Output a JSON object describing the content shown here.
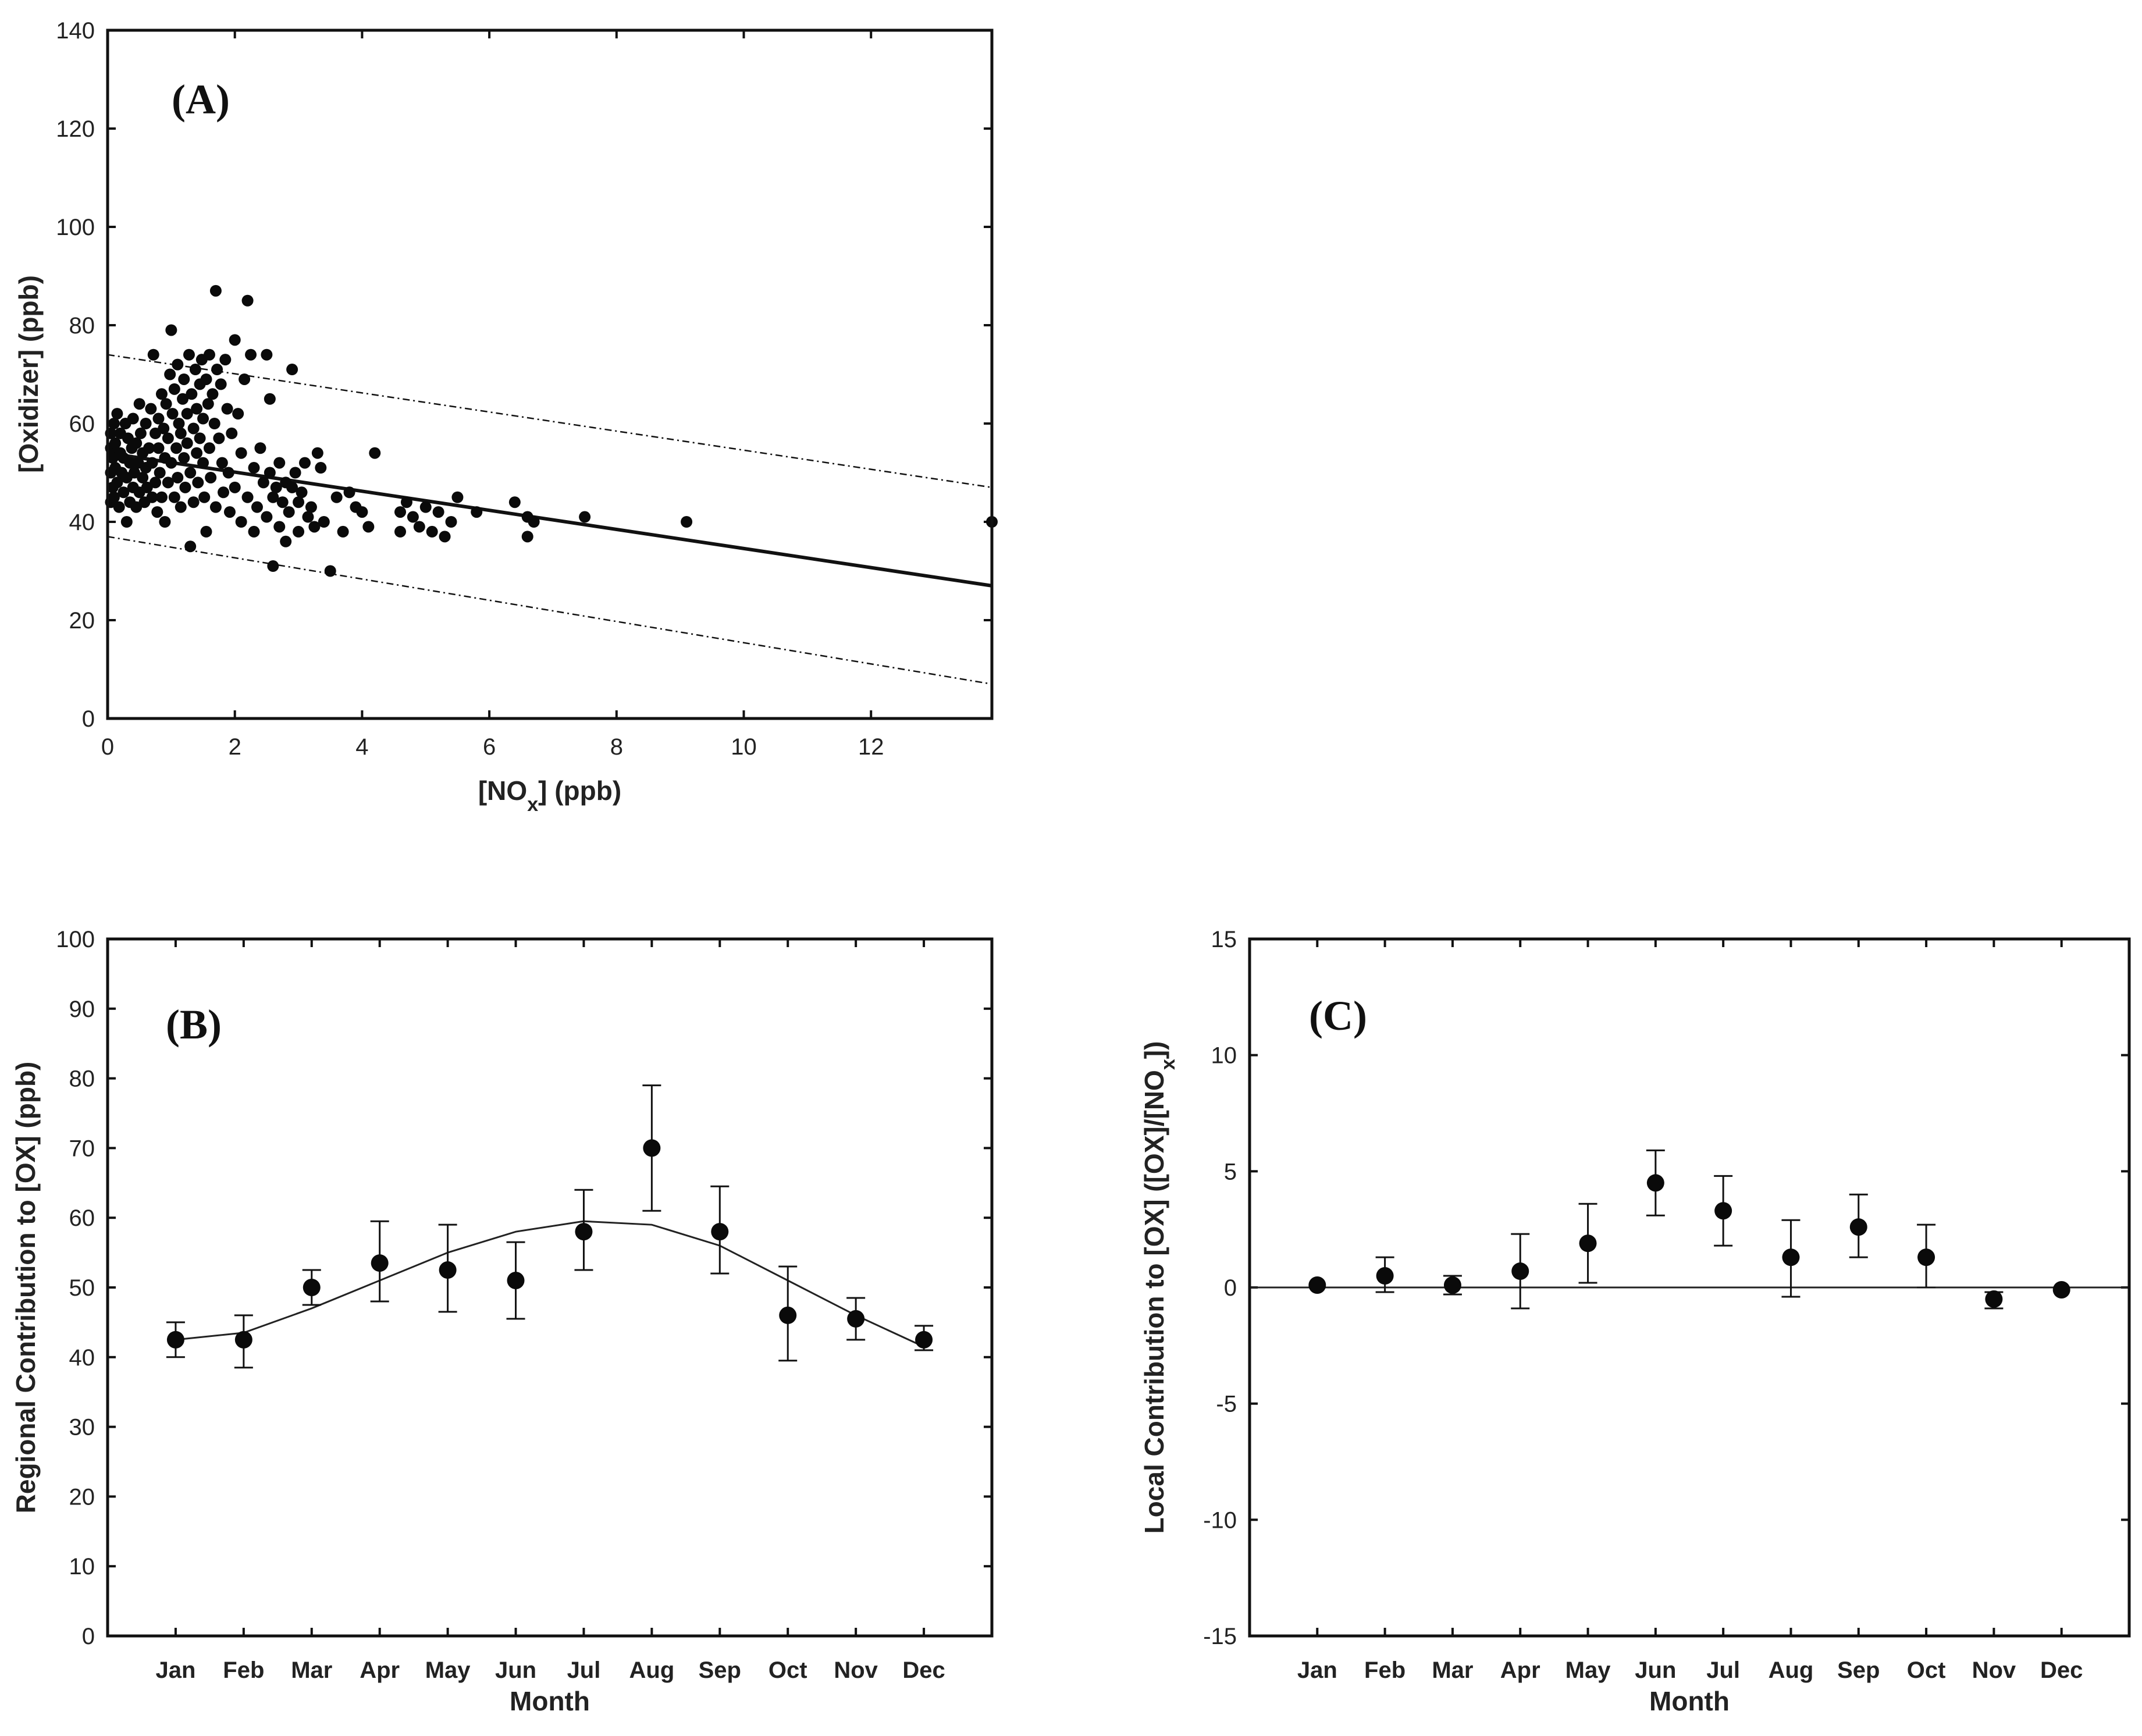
{
  "chart_data": [
    {
      "type": "scatter",
      "panel_label": "(A)",
      "xlabel_main": "[NO",
      "xlabel_sub": "x",
      "xlabel_tail": "] (ppb)",
      "ylabel": "[Oxidizer] (ppb)",
      "xlim": [
        0,
        13.9
      ],
      "ylim": [
        0,
        140
      ],
      "xticks": [
        0,
        2,
        4,
        6,
        8,
        10,
        12
      ],
      "yticks": [
        0,
        20,
        40,
        60,
        80,
        100,
        120,
        140
      ],
      "fit_line": {
        "x": [
          0,
          13.9
        ],
        "y": [
          54,
          27
        ]
      },
      "upper_band": {
        "x": [
          0,
          13.9
        ],
        "y": [
          74,
          47
        ]
      },
      "lower_band": {
        "x": [
          0,
          13.9
        ],
        "y": [
          37,
          7
        ]
      },
      "points": [
        [
          0.05,
          44
        ],
        [
          0.05,
          50
        ],
        [
          0.05,
          55
        ],
        [
          0.05,
          58
        ],
        [
          0.08,
          47
        ],
        [
          0.08,
          53
        ],
        [
          0.1,
          60
        ],
        [
          0.1,
          45
        ],
        [
          0.12,
          51
        ],
        [
          0.12,
          56
        ],
        [
          0.15,
          48
        ],
        [
          0.15,
          62
        ],
        [
          0.18,
          43
        ],
        [
          0.2,
          54
        ],
        [
          0.2,
          58
        ],
        [
          0.22,
          50
        ],
        [
          0.25,
          46
        ],
        [
          0.25,
          53
        ],
        [
          0.28,
          60
        ],
        [
          0.3,
          40
        ],
        [
          0.3,
          49
        ],
        [
          0.32,
          57
        ],
        [
          0.35,
          44
        ],
        [
          0.35,
          52
        ],
        [
          0.38,
          55
        ],
        [
          0.4,
          47
        ],
        [
          0.4,
          61
        ],
        [
          0.42,
          50
        ],
        [
          0.45,
          43
        ],
        [
          0.45,
          56
        ],
        [
          0.48,
          52
        ],
        [
          0.5,
          64
        ],
        [
          0.5,
          46
        ],
        [
          0.52,
          58
        ],
        [
          0.55,
          49
        ],
        [
          0.55,
          54
        ],
        [
          0.58,
          44
        ],
        [
          0.6,
          60
        ],
        [
          0.6,
          51
        ],
        [
          0.62,
          47
        ],
        [
          0.65,
          55
        ],
        [
          0.68,
          63
        ],
        [
          0.7,
          45
        ],
        [
          0.7,
          52
        ],
        [
          0.72,
          74
        ],
        [
          0.75,
          58
        ],
        [
          0.75,
          48
        ],
        [
          0.78,
          42
        ],
        [
          0.8,
          61
        ],
        [
          0.8,
          55
        ],
        [
          0.82,
          50
        ],
        [
          0.85,
          66
        ],
        [
          0.85,
          45
        ],
        [
          0.88,
          59
        ],
        [
          0.9,
          53
        ],
        [
          0.9,
          40
        ],
        [
          0.92,
          64
        ],
        [
          0.95,
          48
        ],
        [
          0.95,
          57
        ],
        [
          0.98,
          70
        ],
        [
          1.0,
          79
        ],
        [
          1.0,
          52
        ],
        [
          1.02,
          62
        ],
        [
          1.05,
          45
        ],
        [
          1.05,
          67
        ],
        [
          1.08,
          55
        ],
        [
          1.1,
          72
        ],
        [
          1.1,
          49
        ],
        [
          1.12,
          60
        ],
        [
          1.15,
          58
        ],
        [
          1.15,
          43
        ],
        [
          1.18,
          65
        ],
        [
          1.2,
          53
        ],
        [
          1.2,
          69
        ],
        [
          1.22,
          47
        ],
        [
          1.25,
          62
        ],
        [
          1.25,
          56
        ],
        [
          1.28,
          74
        ],
        [
          1.3,
          50
        ],
        [
          1.3,
          35
        ],
        [
          1.32,
          66
        ],
        [
          1.35,
          59
        ],
        [
          1.35,
          44
        ],
        [
          1.38,
          71
        ],
        [
          1.4,
          54
        ],
        [
          1.4,
          63
        ],
        [
          1.42,
          48
        ],
        [
          1.45,
          68
        ],
        [
          1.45,
          57
        ],
        [
          1.48,
          73
        ],
        [
          1.5,
          52
        ],
        [
          1.5,
          61
        ],
        [
          1.52,
          45
        ],
        [
          1.55,
          69
        ],
        [
          1.55,
          38
        ],
        [
          1.58,
          64
        ],
        [
          1.6,
          55
        ],
        [
          1.6,
          74
        ],
        [
          1.62,
          49
        ],
        [
          1.65,
          66
        ],
        [
          1.68,
          60
        ],
        [
          1.7,
          87
        ],
        [
          1.7,
          43
        ],
        [
          1.72,
          71
        ],
        [
          1.75,
          57
        ],
        [
          1.78,
          68
        ],
        [
          1.8,
          52
        ],
        [
          1.82,
          46
        ],
        [
          1.85,
          73
        ],
        [
          1.88,
          63
        ],
        [
          1.9,
          50
        ],
        [
          1.92,
          42
        ],
        [
          1.95,
          58
        ],
        [
          2.0,
          77
        ],
        [
          2.0,
          47
        ],
        [
          2.05,
          62
        ],
        [
          2.1,
          54
        ],
        [
          2.1,
          40
        ],
        [
          2.15,
          69
        ],
        [
          2.2,
          85
        ],
        [
          2.2,
          45
        ],
        [
          2.25,
          74
        ],
        [
          2.3,
          51
        ],
        [
          2.3,
          38
        ],
        [
          2.35,
          43
        ],
        [
          2.4,
          55
        ],
        [
          2.45,
          48
        ],
        [
          2.5,
          74
        ],
        [
          2.5,
          41
        ],
        [
          2.55,
          65
        ],
        [
          2.55,
          50
        ],
        [
          2.6,
          31
        ],
        [
          2.6,
          45
        ],
        [
          2.65,
          47
        ],
        [
          2.7,
          39
        ],
        [
          2.7,
          52
        ],
        [
          2.75,
          44
        ],
        [
          2.8,
          48
        ],
        [
          2.8,
          36
        ],
        [
          2.85,
          42
        ],
        [
          2.9,
          71
        ],
        [
          2.9,
          47
        ],
        [
          2.95,
          50
        ],
        [
          3.0,
          44
        ],
        [
          3.0,
          38
        ],
        [
          3.05,
          46
        ],
        [
          3.1,
          52
        ],
        [
          3.15,
          41
        ],
        [
          3.2,
          43
        ],
        [
          3.25,
          39
        ],
        [
          3.3,
          54
        ],
        [
          3.35,
          51
        ],
        [
          3.4,
          40
        ],
        [
          3.5,
          30
        ],
        [
          3.6,
          45
        ],
        [
          3.7,
          38
        ],
        [
          3.8,
          46
        ],
        [
          3.9,
          43
        ],
        [
          4.0,
          42
        ],
        [
          4.1,
          39
        ],
        [
          4.2,
          54
        ],
        [
          4.6,
          42
        ],
        [
          4.6,
          38
        ],
        [
          4.7,
          44
        ],
        [
          4.8,
          41
        ],
        [
          4.9,
          39
        ],
        [
          5.0,
          43
        ],
        [
          5.1,
          38
        ],
        [
          5.2,
          42
        ],
        [
          5.3,
          37
        ],
        [
          5.4,
          40
        ],
        [
          5.5,
          45
        ],
        [
          5.8,
          42
        ],
        [
          6.4,
          44
        ],
        [
          6.6,
          37
        ],
        [
          6.6,
          41
        ],
        [
          6.7,
          40
        ],
        [
          7.5,
          41
        ],
        [
          9.1,
          40
        ],
        [
          13.9,
          40
        ]
      ]
    },
    {
      "type": "scatter",
      "panel_label": "(B)",
      "xlabel": "Month",
      "ylabel": "Regional Contribution to [OX] (ppb)",
      "ylim": [
        0,
        100
      ],
      "yticks": [
        0,
        10,
        20,
        30,
        40,
        50,
        60,
        70,
        80,
        90,
        100
      ],
      "categories": [
        "Jan",
        "Feb",
        "Mar",
        "Apr",
        "May",
        "Jun",
        "Jul",
        "Aug",
        "Sep",
        "Oct",
        "Nov",
        "Dec"
      ],
      "values": [
        42.5,
        42.5,
        50,
        53.5,
        52.5,
        51,
        58,
        70,
        58,
        46,
        45.5,
        42.5
      ],
      "error_low": [
        40,
        38.5,
        47.5,
        48,
        46.5,
        45.5,
        52.5,
        61,
        52,
        39.5,
        42.5,
        41
      ],
      "error_high": [
        45,
        46,
        52.5,
        59.5,
        59,
        56.5,
        64,
        79,
        64.5,
        53,
        48.5,
        44.5
      ],
      "fit_curve": [
        42.5,
        43.5,
        47,
        51,
        55,
        58,
        59.5,
        59,
        56,
        51,
        46,
        41.5
      ]
    },
    {
      "type": "scatter",
      "panel_label": "(C)",
      "xlabel": "Month",
      "ylabel_main": "Local Contribution to [OX] ([OX]/[NO",
      "ylabel_sub": "x",
      "ylabel_tail": "])",
      "ylim": [
        -15,
        15
      ],
      "yticks": [
        -15,
        -10,
        -5,
        0,
        5,
        10,
        15
      ],
      "categories": [
        "Jan",
        "Feb",
        "Mar",
        "Apr",
        "May",
        "Jun",
        "Jul",
        "Aug",
        "Sep",
        "Oct",
        "Nov",
        "Dec"
      ],
      "values": [
        0.1,
        0.5,
        0.1,
        0.7,
        1.9,
        4.5,
        3.3,
        1.3,
        2.6,
        1.3,
        -0.5,
        -0.1
      ],
      "error_low": [
        0.1,
        -0.2,
        -0.3,
        -0.9,
        0.2,
        3.1,
        1.8,
        -0.4,
        1.3,
        0,
        -0.9,
        -0.1
      ],
      "error_high": [
        0.1,
        1.3,
        0.5,
        2.3,
        3.6,
        5.9,
        4.8,
        2.9,
        4.0,
        2.7,
        -0.2,
        -0.1
      ],
      "zero_line": 0
    }
  ]
}
